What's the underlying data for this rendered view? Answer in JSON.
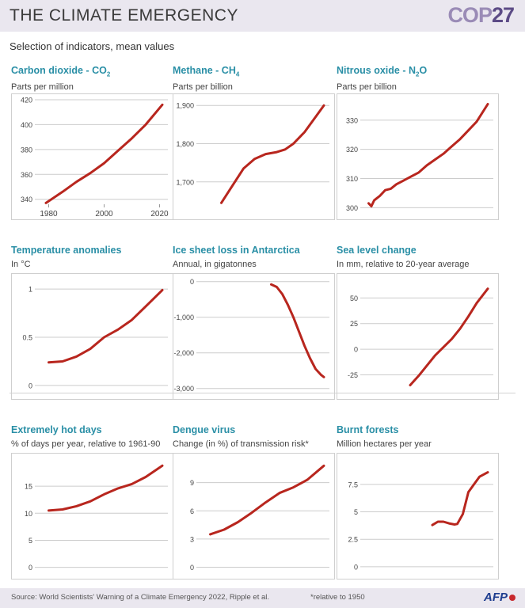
{
  "header": {
    "title": "THE CLIMATE EMERGENCY",
    "logo_main": "COP",
    "logo_num": "27"
  },
  "subtitle": "Selection of indicators, mean values",
  "footer": {
    "source": "Source: World Scientists' Warning of a Climate Emergency 2022, Ripple et al.",
    "note": "*relative to 1950",
    "agency": "AFP"
  },
  "colors": {
    "line": "#b8261e",
    "title": "#2a8fa6",
    "grid": "#cccccc",
    "header_bg": "#eae7ef"
  },
  "chart_data": [
    {
      "type": "line",
      "id": "co2",
      "title": "Carbon dioxide - CO",
      "title_sub": "2",
      "ylabel": "Parts per million",
      "x": [
        1979,
        1985,
        1990,
        1995,
        2000,
        2005,
        2010,
        2015,
        2021
      ],
      "y": [
        337,
        346,
        354,
        361,
        369,
        379,
        389,
        400,
        416
      ],
      "ylim": [
        336,
        420
      ],
      "yticks": [
        340,
        360,
        380,
        400,
        420
      ],
      "ytick_labels": [
        "340",
        "360",
        "380",
        "400",
        "420"
      ],
      "xlim": [
        1977,
        2023
      ],
      "xticks": [
        1980,
        2000,
        2020
      ],
      "xtick_labels": [
        "1980",
        "2000",
        "2020"
      ]
    },
    {
      "type": "line",
      "id": "ch4",
      "title": "Methane - CH",
      "title_sub": "4",
      "ylabel": "Parts per billion",
      "x": [
        1984,
        1988,
        1992,
        1996,
        2000,
        2004,
        2007,
        2010,
        2014,
        2018,
        2021
      ],
      "y": [
        1645,
        1690,
        1735,
        1760,
        1773,
        1778,
        1785,
        1800,
        1830,
        1870,
        1900
      ],
      "ylim": [
        1625,
        1915
      ],
      "yticks": [
        1700,
        1800,
        1900
      ],
      "ytick_labels": [
        "1,700",
        "1,800",
        "1,900"
      ],
      "xlim": [
        1977,
        2023
      ],
      "xticks": [],
      "xtick_labels": []
    },
    {
      "type": "line",
      "id": "n2o",
      "title": "Nitrous oxide - N",
      "title_sub": "2",
      "title_after": "O",
      "ylabel": "Parts per billion",
      "x": [
        1978,
        1979,
        1980,
        1982,
        1984,
        1986,
        1988,
        1990,
        1993,
        1996,
        1999,
        2002,
        2005,
        2008,
        2011,
        2014,
        2017,
        2021
      ],
      "y": [
        301.5,
        300.5,
        302.5,
        304,
        306,
        306.5,
        308,
        309,
        310.5,
        312,
        314.5,
        316.5,
        318.5,
        321,
        323.5,
        326.5,
        329.5,
        335.5
      ],
      "ylim": [
        299,
        337
      ],
      "yticks": [
        300,
        310,
        320,
        330
      ],
      "ytick_labels": [
        "300",
        "310",
        "320",
        "330"
      ],
      "xlim": [
        1977,
        2023
      ],
      "xticks": [],
      "xtick_labels": []
    },
    {
      "type": "line",
      "id": "temp",
      "title": "Temperature anomalies",
      "ylabel": "In °C",
      "x": [
        1980,
        1985,
        1990,
        1995,
        2000,
        2005,
        2010,
        2015,
        2021
      ],
      "y": [
        0.24,
        0.25,
        0.3,
        0.38,
        0.5,
        0.58,
        0.68,
        0.82,
        0.99
      ],
      "ylim": [
        -0.05,
        1.1
      ],
      "yticks": [
        0,
        0.5,
        1
      ],
      "ytick_labels": [
        "0",
        "0.5",
        "1"
      ],
      "xlim": [
        1977,
        2023
      ],
      "xticks": [],
      "xtick_labels": []
    },
    {
      "type": "line",
      "id": "ice",
      "title": "Ice sheet loss in Antarctica",
      "ylabel": "Annual, in gigatonnes",
      "x": [
        2002,
        2004,
        2006,
        2008,
        2010,
        2012,
        2014,
        2016,
        2018,
        2020,
        2021
      ],
      "y": [
        -80,
        -150,
        -350,
        -650,
        -1000,
        -1400,
        -1800,
        -2150,
        -2450,
        -2620,
        -2680
      ],
      "ylim": [
        -3050,
        60
      ],
      "yticks": [
        0,
        -1000,
        -2000,
        -3000
      ],
      "ytick_labels": [
        "0",
        "-1,000",
        "-2,000",
        "-3,000"
      ],
      "xlim": [
        1977,
        2023
      ],
      "xticks": [],
      "xtick_labels": []
    },
    {
      "type": "line",
      "id": "sea",
      "title": "Sea level change",
      "ylabel": "In mm, relative  to 20-year average",
      "x": [
        1993,
        1996,
        1999,
        2002,
        2005,
        2008,
        2011,
        2014,
        2017,
        2021
      ],
      "y": [
        -35,
        -26,
        -16,
        -6,
        2,
        10,
        20,
        32,
        45,
        59
      ],
      "ylim": [
        -40,
        68
      ],
      "yticks": [
        -25,
        0,
        25,
        50
      ],
      "ytick_labels": [
        "-25",
        "0",
        "25",
        "50"
      ],
      "xlim": [
        1977,
        2023
      ],
      "xticks": [],
      "xtick_labels": []
    },
    {
      "type": "line",
      "id": "hotdays",
      "title": "Extremely hot days",
      "ylabel": "% of days per year, relative to 1961-90",
      "x": [
        1980,
        1985,
        1990,
        1995,
        2000,
        2005,
        2010,
        2015,
        2021
      ],
      "y": [
        10.5,
        10.7,
        11.3,
        12.2,
        13.5,
        14.6,
        15.4,
        16.7,
        18.8
      ],
      "ylim": [
        -0.5,
        20
      ],
      "yticks": [
        0,
        5,
        10,
        15
      ],
      "ytick_labels": [
        "0",
        "5",
        "10",
        "15"
      ],
      "xlim": [
        1977,
        2023
      ],
      "xticks": [],
      "xtick_labels": []
    },
    {
      "type": "line",
      "id": "dengue",
      "title": "Dengue virus",
      "ylabel": "Change (in %) of transmission risk*",
      "x": [
        1980,
        1985,
        1990,
        1995,
        2000,
        2005,
        2010,
        2015,
        2021
      ],
      "y": [
        3.5,
        4,
        4.8,
        5.8,
        6.9,
        7.9,
        8.5,
        9.3,
        10.8
      ],
      "ylim": [
        -0.3,
        11.5
      ],
      "yticks": [
        0,
        3,
        6,
        9
      ],
      "ytick_labels": [
        "0",
        "3",
        "6",
        "9"
      ],
      "xlim": [
        1977,
        2023
      ],
      "xticks": [],
      "xtick_labels": []
    },
    {
      "type": "line",
      "id": "forests",
      "title": "Burnt forests",
      "ylabel": "Million hectares per year",
      "x": [
        2001,
        2003,
        2005,
        2007,
        2009,
        2010,
        2012,
        2014,
        2016,
        2018,
        2021
      ],
      "y": [
        3.8,
        4.1,
        4.1,
        3.95,
        3.85,
        3.9,
        4.8,
        6.8,
        7.5,
        8.2,
        8.6
      ],
      "ylim": [
        -0.3,
        9.8
      ],
      "yticks": [
        0,
        2.5,
        5,
        7.5
      ],
      "ytick_labels": [
        "0",
        "2.5",
        "5",
        "7.5"
      ],
      "xlim": [
        1977,
        2023
      ],
      "xticks": [],
      "xtick_labels": []
    }
  ]
}
